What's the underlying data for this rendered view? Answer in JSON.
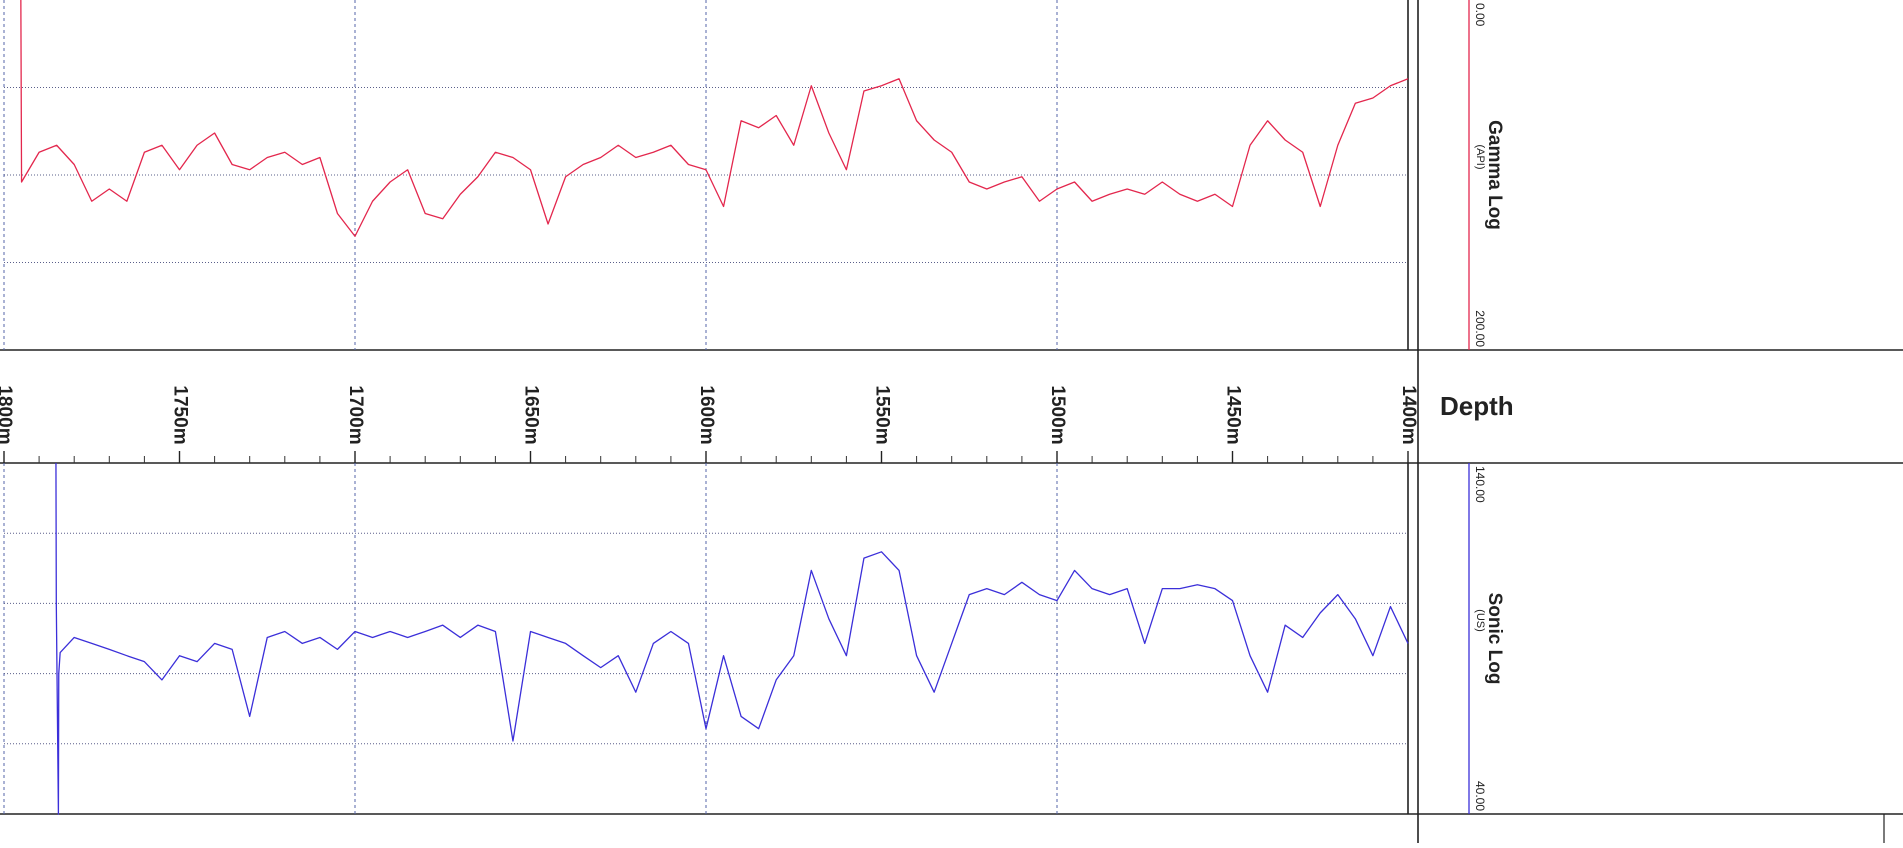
{
  "depth_axis": {
    "label": "Depth",
    "xlim": [
      1800,
      1400
    ],
    "xticks": [
      {
        "value": 1800,
        "label": "1800m"
      },
      {
        "value": 1750,
        "label": "1750m"
      },
      {
        "value": 1700,
        "label": "1700m"
      },
      {
        "value": 1650,
        "label": "1650m"
      },
      {
        "value": 1600,
        "label": "1600m"
      },
      {
        "value": 1550,
        "label": "1550m"
      },
      {
        "value": 1500,
        "label": "1500m"
      },
      {
        "value": 1450,
        "label": "1450m"
      },
      {
        "value": 1400,
        "label": "1400m"
      }
    ],
    "minor_xticks": [
      1790,
      1780,
      1770,
      1760,
      1740,
      1730,
      1720,
      1710,
      1690,
      1680,
      1670,
      1660,
      1640,
      1630,
      1620,
      1610,
      1590,
      1580,
      1570,
      1560,
      1540,
      1530,
      1520,
      1510,
      1490,
      1480,
      1470,
      1460,
      1440,
      1430,
      1420,
      1410
    ],
    "xgrid": [
      1700,
      1600,
      1500
    ]
  },
  "chart_data": [
    {
      "type": "line",
      "title": "Gamma Log",
      "unit": "(API)",
      "color": "#e3274d",
      "xlim": [
        1800,
        1400
      ],
      "ylim": [
        200,
        0
      ],
      "yticks": [
        {
          "value": 0,
          "label": "0.00"
        },
        {
          "value": 200,
          "label": "200.00"
        }
      ],
      "ygrid": [
        50,
        100,
        150
      ],
      "x": [
        1795.2,
        1795,
        1790,
        1785,
        1780,
        1775,
        1770,
        1765,
        1760,
        1755,
        1750,
        1745,
        1740,
        1735,
        1730,
        1725,
        1720,
        1715,
        1710,
        1705,
        1700,
        1695,
        1690,
        1685,
        1680,
        1675,
        1670,
        1665,
        1660,
        1655,
        1650,
        1645,
        1640,
        1635,
        1630,
        1625,
        1620,
        1615,
        1610,
        1605,
        1600,
        1595,
        1590,
        1585,
        1580,
        1575,
        1570,
        1565,
        1560,
        1555,
        1550,
        1545,
        1540,
        1535,
        1530,
        1525,
        1520,
        1515,
        1510,
        1505,
        1500,
        1495,
        1490,
        1485,
        1480,
        1475,
        1470,
        1465,
        1460,
        1455,
        1450,
        1445,
        1440,
        1435,
        1430,
        1425,
        1420,
        1415,
        1410,
        1405,
        1400
      ],
      "values": [
        0,
        104,
        87,
        83,
        94,
        115,
        108,
        115,
        87,
        83,
        97,
        83,
        76,
        94,
        97,
        90,
        87,
        94,
        90,
        122,
        135,
        115,
        104,
        97,
        122,
        125,
        111,
        101,
        87,
        90,
        97,
        128,
        101,
        94,
        90,
        83,
        90,
        87,
        83,
        94,
        97,
        118,
        69,
        73,
        66,
        83,
        49,
        76,
        97,
        52,
        49,
        45,
        69,
        80,
        87,
        104,
        108,
        104,
        101,
        115,
        108,
        104,
        115,
        111,
        108,
        111,
        104,
        111,
        115,
        111,
        118,
        83,
        69,
        80,
        87,
        118,
        83,
        59,
        56,
        49,
        45
      ]
    },
    {
      "type": "line",
      "title": "Sonic Log",
      "unit": "(US)",
      "color": "#3b2fd9",
      "xlim": [
        1800,
        1400
      ],
      "ylim": [
        40,
        140
      ],
      "yticks": [
        {
          "value": 140,
          "label": "140.00"
        },
        {
          "value": 40,
          "label": "40.00"
        }
      ],
      "ygrid": [
        120,
        100,
        80,
        60
      ],
      "x": [
        1785.2,
        1785.1,
        1784.5,
        1784.4,
        1784,
        1780,
        1775,
        1770,
        1765,
        1760,
        1755,
        1750,
        1745,
        1740,
        1735,
        1730,
        1725,
        1720,
        1715,
        1710,
        1705,
        1700,
        1695,
        1690,
        1685,
        1680,
        1675,
        1670,
        1665,
        1660,
        1655,
        1650,
        1645,
        1640,
        1635,
        1630,
        1625,
        1620,
        1615,
        1610,
        1605,
        1600,
        1595,
        1590,
        1585,
        1580,
        1575,
        1570,
        1565,
        1560,
        1555,
        1550,
        1545,
        1540,
        1535,
        1530,
        1525,
        1520,
        1515,
        1510,
        1505,
        1500,
        1495,
        1490,
        1485,
        1480,
        1475,
        1470,
        1465,
        1460,
        1455,
        1450,
        1445,
        1440,
        1435,
        1430,
        1425,
        1420,
        1415,
        1410,
        1405,
        1400
      ],
      "values": [
        140,
        100,
        40,
        80,
        86,
        90.3,
        88.6,
        86.9,
        85.1,
        83.4,
        78.2,
        85.1,
        83.4,
        88.6,
        86.9,
        67.8,
        90.3,
        92.0,
        88.6,
        90.3,
        86.9,
        92.0,
        90.3,
        92.0,
        90.3,
        92.0,
        93.8,
        90.3,
        93.8,
        92.0,
        60.8,
        92.0,
        90.3,
        88.6,
        85.1,
        81.7,
        85.1,
        74.7,
        88.6,
        92.0,
        88.6,
        64.3,
        85.1,
        67.8,
        64.3,
        78.2,
        85.1,
        109.4,
        95.6,
        85.1,
        112.9,
        114.7,
        109.4,
        85.1,
        74.7,
        88.6,
        102.5,
        104.2,
        102.5,
        106.0,
        102.5,
        100.8,
        109.4,
        104.2,
        102.5,
        104.2,
        88.6,
        104.2,
        104.2,
        105.3,
        104.2,
        100.8,
        85.1,
        74.7,
        93.8,
        90.3,
        97.3,
        102.5,
        95.6,
        85.1,
        99.1,
        88.6
      ]
    }
  ]
}
